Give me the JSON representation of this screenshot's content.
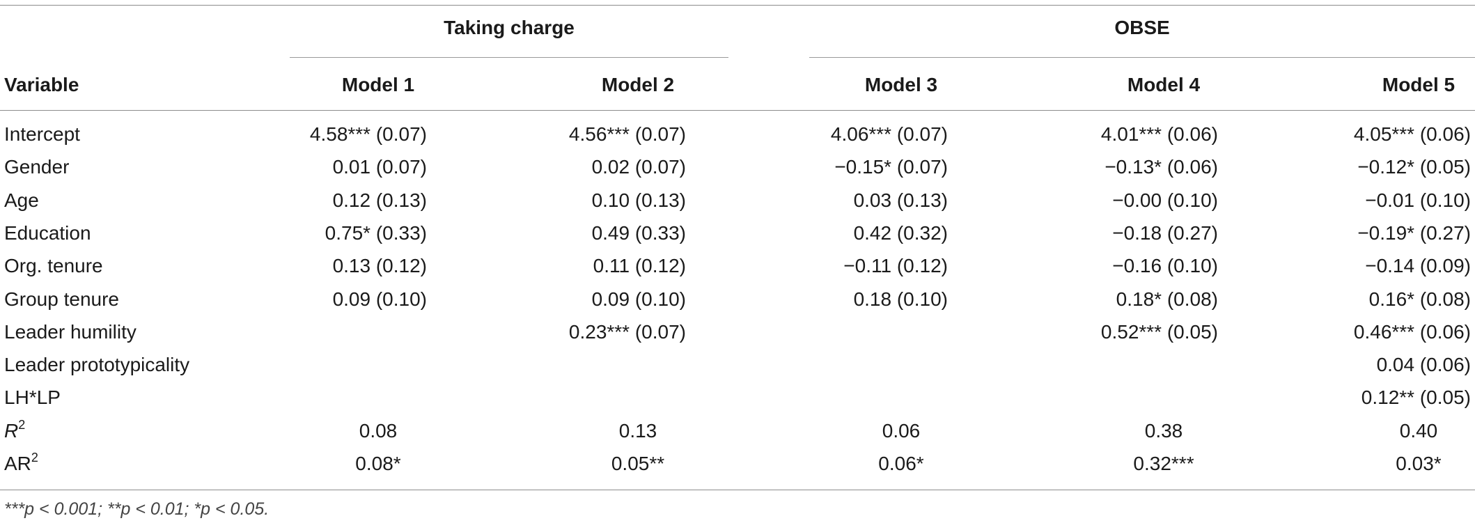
{
  "group_headers": [
    "Taking charge",
    "OBSE"
  ],
  "columns": [
    "Variable",
    "Model 1",
    "Model 2",
    "Model 3",
    "Model 4",
    "Model 5"
  ],
  "rows": [
    {
      "label": "Intercept",
      "values": [
        "4.58*** (0.07)",
        "4.56*** (0.07)",
        "4.06*** (0.07)",
        "4.01*** (0.06)",
        "4.05*** (0.06)"
      ]
    },
    {
      "label": "Gender",
      "values": [
        "0.01 (0.07)",
        "0.02 (0.07)",
        "−0.15* (0.07)",
        "−0.13* (0.06)",
        "−0.12* (0.05)"
      ]
    },
    {
      "label": "Age",
      "values": [
        "0.12 (0.13)",
        "0.10 (0.13)",
        "0.03 (0.13)",
        "−0.00 (0.10)",
        "−0.01 (0.10)"
      ]
    },
    {
      "label": "Education",
      "values": [
        "0.75* (0.33)",
        "0.49 (0.33)",
        "0.42 (0.32)",
        "−0.18 (0.27)",
        "−0.19* (0.27)"
      ]
    },
    {
      "label": "Org. tenure",
      "values": [
        "0.13 (0.12)",
        "0.11 (0.12)",
        "−0.11 (0.12)",
        "−0.16 (0.10)",
        "−0.14 (0.09)"
      ]
    },
    {
      "label": "Group tenure",
      "values": [
        "0.09 (0.10)",
        "0.09 (0.10)",
        "0.18 (0.10)",
        "0.18* (0.08)",
        "0.16* (0.08)"
      ]
    },
    {
      "label": "Leader humility",
      "values": [
        "",
        "0.23*** (0.07)",
        "",
        "0.52*** (0.05)",
        "0.46*** (0.06)"
      ]
    },
    {
      "label": "Leader prototypicality",
      "values": [
        "",
        "",
        "",
        "",
        "0.04 (0.06)"
      ]
    },
    {
      "label": "LH*LP",
      "values": [
        "",
        "",
        "",
        "",
        "0.12** (0.05)"
      ]
    }
  ],
  "r2_row": {
    "label": "R",
    "sup": "2",
    "values": [
      "0.08",
      "0.13",
      "0.06",
      "0.38",
      "0.40"
    ]
  },
  "ar2_row": {
    "label": "AR",
    "sup": "2",
    "values": [
      "0.08*",
      "0.05**",
      "0.06*",
      "0.32***",
      "0.03*"
    ]
  },
  "footnote": "***p < 0.001; **p < 0.01; *p < 0.05."
}
